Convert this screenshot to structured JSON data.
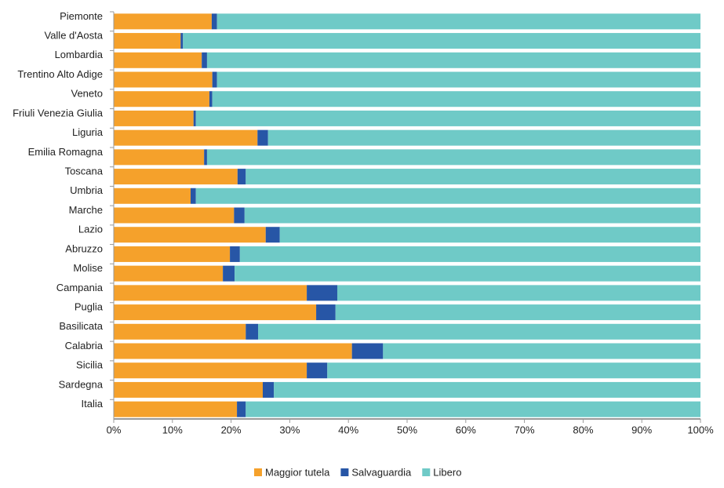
{
  "chart_data": {
    "type": "stacked_barh",
    "categories": [
      "Piemonte",
      "Valle d'Aosta",
      "Lombardia",
      "Trentino Alto Adige",
      "Veneto",
      "Friuli Venezia Giulia",
      "Liguria",
      "Emilia Romagna",
      "Toscana",
      "Umbria",
      "Marche",
      "Lazio",
      "Abruzzo",
      "Molise",
      "Campania",
      "Puglia",
      "Basilicata",
      "Calabria",
      "Sicilia",
      "Sardegna",
      "Italia"
    ],
    "series": [
      {
        "name": "Maggior tutela",
        "color": "#f5a12b",
        "values": [
          16.7,
          11.4,
          15.0,
          16.8,
          16.3,
          13.6,
          24.5,
          15.4,
          21.1,
          13.1,
          20.5,
          25.9,
          19.8,
          18.6,
          32.9,
          34.5,
          22.5,
          40.6,
          32.9,
          25.4,
          21.0
        ]
      },
      {
        "name": "Salvaguardia",
        "color": "#2756a6",
        "values": [
          0.9,
          0.4,
          0.9,
          0.8,
          0.5,
          0.4,
          1.8,
          0.5,
          1.4,
          0.9,
          1.8,
          2.4,
          1.7,
          2.0,
          5.2,
          3.3,
          2.1,
          5.3,
          3.5,
          1.9,
          1.5
        ]
      },
      {
        "name": "Libero",
        "color": "#6fcac7",
        "values": [
          82.4,
          88.2,
          84.1,
          82.4,
          83.2,
          86.0,
          73.7,
          84.1,
          77.5,
          86.0,
          77.7,
          71.7,
          78.5,
          79.4,
          61.9,
          62.2,
          75.4,
          54.1,
          63.6,
          72.7,
          77.5
        ]
      }
    ],
    "xlim": [
      0,
      100
    ],
    "xticks": [
      {
        "value": 0,
        "label": "0%"
      },
      {
        "value": 10,
        "label": "10%"
      },
      {
        "value": 20,
        "label": "20%"
      },
      {
        "value": 30,
        "label": "30%"
      },
      {
        "value": 40,
        "label": "40%"
      },
      {
        "value": 50,
        "label": "50%"
      },
      {
        "value": 60,
        "label": "60%"
      },
      {
        "value": 70,
        "label": "70%"
      },
      {
        "value": 80,
        "label": "80%"
      },
      {
        "value": 90,
        "label": "90%"
      },
      {
        "value": 100,
        "label": "100%"
      }
    ]
  }
}
